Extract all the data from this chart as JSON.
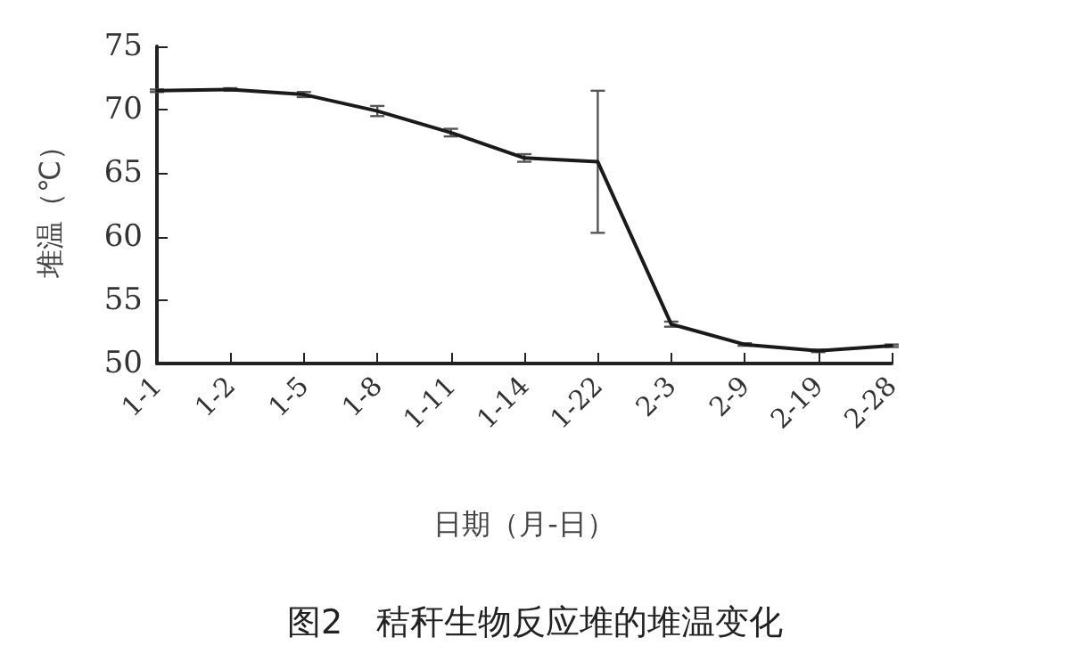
{
  "chart_data": {
    "type": "line",
    "title": "图2　秸秆生物反应堆的堆温变化",
    "xlabel": "日期（月-日）",
    "ylabel": "堆温（℃）",
    "categories": [
      "1-1",
      "1-2",
      "1-5",
      "1-8",
      "1-11",
      "1-14",
      "1-22",
      "2-3",
      "2-9",
      "2-19",
      "2-28"
    ],
    "values": [
      71.5,
      71.6,
      71.2,
      69.9,
      68.2,
      66.2,
      65.9,
      53.1,
      51.5,
      51.0,
      51.4
    ],
    "errors": [
      0.1,
      0.1,
      0.2,
      0.4,
      0.3,
      0.3,
      5.6,
      0.2,
      0.1,
      0.1,
      0.1
    ],
    "color": "#1a1a1a",
    "ylim": [
      50,
      75
    ],
    "yticks": [
      50,
      55,
      60,
      65,
      70,
      75
    ],
    "grid": false,
    "marker": "none",
    "line_style": "solid"
  }
}
